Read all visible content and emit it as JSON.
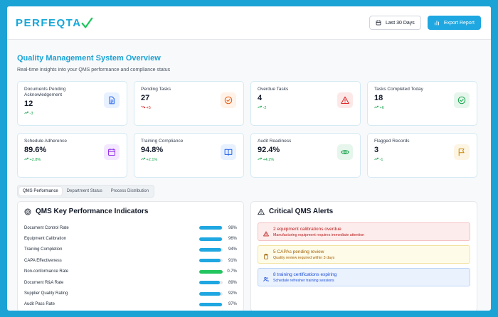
{
  "app": {
    "logo_text": "PERFEQTA"
  },
  "header": {
    "range_label": "Last 30 Days",
    "export_label": "Export Report"
  },
  "page": {
    "title": "Quality Management System Overview",
    "subtitle": "Real-time insights into your QMS performance and compliance status"
  },
  "cards": [
    {
      "label": "Documents Pending Acknowledgement",
      "value": "12",
      "trend": "-3",
      "direction": "up",
      "icon": "document-icon",
      "icon_color": "#2563eb",
      "icon_bg": "#e8f1ff"
    },
    {
      "label": "Pending Tasks",
      "value": "27",
      "trend": "+5",
      "direction": "down",
      "icon": "check-circle-icon",
      "icon_color": "#ea580c",
      "icon_bg": "#fff2e8"
    },
    {
      "label": "Overdue Tasks",
      "value": "4",
      "trend": "-2",
      "direction": "up",
      "icon": "warning-icon",
      "icon_color": "#dc2626",
      "icon_bg": "#fde8e8"
    },
    {
      "label": "Tasks Completed Today",
      "value": "18",
      "trend": "+6",
      "direction": "up",
      "icon": "check-circle-icon",
      "icon_color": "#16a34a",
      "icon_bg": "#e6f6ec"
    },
    {
      "label": "Schedule Adherence",
      "value": "89.6%",
      "trend": "+2.8%",
      "direction": "up",
      "icon": "calendar-icon",
      "icon_color": "#9333ea",
      "icon_bg": "#f3e8ff"
    },
    {
      "label": "Training Compliance",
      "value": "94.8%",
      "trend": "+2.1%",
      "direction": "up",
      "icon": "book-icon",
      "icon_color": "#2563eb",
      "icon_bg": "#e8f1ff"
    },
    {
      "label": "Audit Readiness",
      "value": "92.4%",
      "trend": "+4.2%",
      "direction": "up",
      "icon": "eye-icon",
      "icon_color": "#16a34a",
      "icon_bg": "#e6f6ec"
    },
    {
      "label": "Flagged Records",
      "value": "3",
      "trend": "-1",
      "direction": "up",
      "icon": "flag-icon",
      "icon_color": "#ca8a04",
      "icon_bg": "#fdf5e3"
    }
  ],
  "tabs": [
    {
      "label": "QMS Performance",
      "active": true
    },
    {
      "label": "Department Status",
      "active": false
    },
    {
      "label": "Process Distribution",
      "active": false
    }
  ],
  "kpi_panel": {
    "title": "QMS Key Performance Indicators",
    "items": [
      {
        "name": "Document Control Rate",
        "value": "98%",
        "level": 0.98,
        "color": "#1ea7e1"
      },
      {
        "name": "Equipment Calibration",
        "value": "96%",
        "level": 0.96,
        "color": "#1ea7e1"
      },
      {
        "name": "Training Completion",
        "value": "94%",
        "level": 0.94,
        "color": "#1ea7e1"
      },
      {
        "name": "CAPA Effectiveness",
        "value": "91%",
        "level": 0.91,
        "color": "#1ea7e1"
      },
      {
        "name": "Non-conformance Rate",
        "value": "0.7%",
        "level": 1.0,
        "color": "#22c55e"
      },
      {
        "name": "Document R&A Rate",
        "value": "89%",
        "level": 0.89,
        "color": "#1ea7e1"
      },
      {
        "name": "Supplier Quality Rating",
        "value": "92%",
        "level": 0.92,
        "color": "#1ea7e1"
      },
      {
        "name": "Audit Pass Rate",
        "value": "97%",
        "level": 0.97,
        "color": "#1ea7e1"
      }
    ]
  },
  "alerts_panel": {
    "title": "Critical QMS Alerts",
    "items": [
      {
        "title": "2 equipment calibrations overdue",
        "desc": "Manufacturing equipment requires immediate attention",
        "icon": "warning-icon",
        "bg": "#fdecec",
        "border": "#f5c2c2",
        "color": "#b91c1c"
      },
      {
        "title": "5 CAPAs pending review",
        "desc": "Quality review required within 3 days",
        "icon": "clipboard-icon",
        "bg": "#fefbe8",
        "border": "#f3e2a0",
        "color": "#a16207"
      },
      {
        "title": "8 training certifications expiring",
        "desc": "Schedule refresher training sessions",
        "icon": "users-icon",
        "bg": "#eaf2fd",
        "border": "#bcd4f5",
        "color": "#1d4ed8"
      }
    ]
  }
}
